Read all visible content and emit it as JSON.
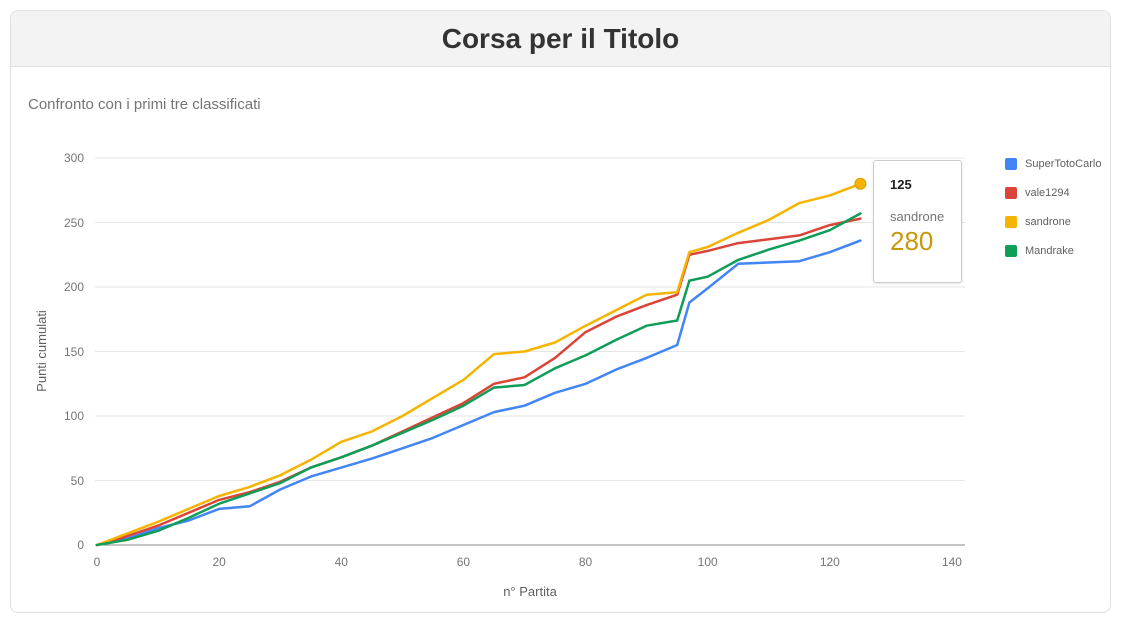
{
  "header": {
    "title": "Corsa per il Titolo"
  },
  "subtitle": "Confronto con i primi tre classificati",
  "tooltip": {
    "x_value": "125",
    "series_name": "sandrone",
    "value": "280",
    "value_color": "#c79908"
  },
  "chart_data": {
    "type": "line",
    "title": "Corsa per il Titolo",
    "xlabel": "n° Partita",
    "ylabel": "Punti cumulati",
    "xlim": [
      0,
      140
    ],
    "ylim": [
      0,
      300
    ],
    "xticks": [
      0,
      20,
      40,
      60,
      80,
      100,
      120,
      140
    ],
    "yticks": [
      0,
      50,
      100,
      150,
      200,
      250,
      300
    ],
    "grid": true,
    "legend_position": "right",
    "x": [
      0,
      5,
      10,
      15,
      20,
      25,
      30,
      35,
      40,
      45,
      50,
      55,
      60,
      65,
      70,
      75,
      80,
      85,
      90,
      95,
      97,
      100,
      105,
      110,
      115,
      120,
      125
    ],
    "series": [
      {
        "name": "SuperTotoCarlo",
        "color": "#4285F4",
        "values": [
          0,
          5,
          13,
          19,
          28,
          30,
          43,
          53,
          60,
          67,
          75,
          83,
          93,
          103,
          108,
          118,
          125,
          136,
          145,
          155,
          188,
          199,
          218,
          219,
          220,
          227,
          236
        ]
      },
      {
        "name": "vale1294",
        "color": "#DB4437",
        "values": [
          0,
          7,
          15,
          25,
          35,
          41,
          49,
          60,
          68,
          77,
          88,
          99,
          110,
          125,
          130,
          145,
          165,
          177,
          186,
          194,
          225,
          228,
          234,
          237,
          240,
          248,
          253
        ]
      },
      {
        "name": "sandrone",
        "color": "#F4B400",
        "end_marker": true,
        "values": [
          0,
          9,
          18,
          28,
          38,
          45,
          54,
          66,
          80,
          88,
          100,
          114,
          128,
          148,
          150,
          157,
          170,
          182,
          194,
          196,
          227,
          231,
          242,
          252,
          265,
          271,
          280
        ]
      },
      {
        "name": "Mandrake",
        "color": "#0F9D58",
        "values": [
          0,
          4,
          11,
          21,
          32,
          40,
          48,
          60,
          68,
          77,
          87,
          97,
          108,
          122,
          124,
          137,
          147,
          159,
          170,
          174,
          205,
          208,
          221,
          229,
          236,
          244,
          257
        ]
      }
    ]
  }
}
